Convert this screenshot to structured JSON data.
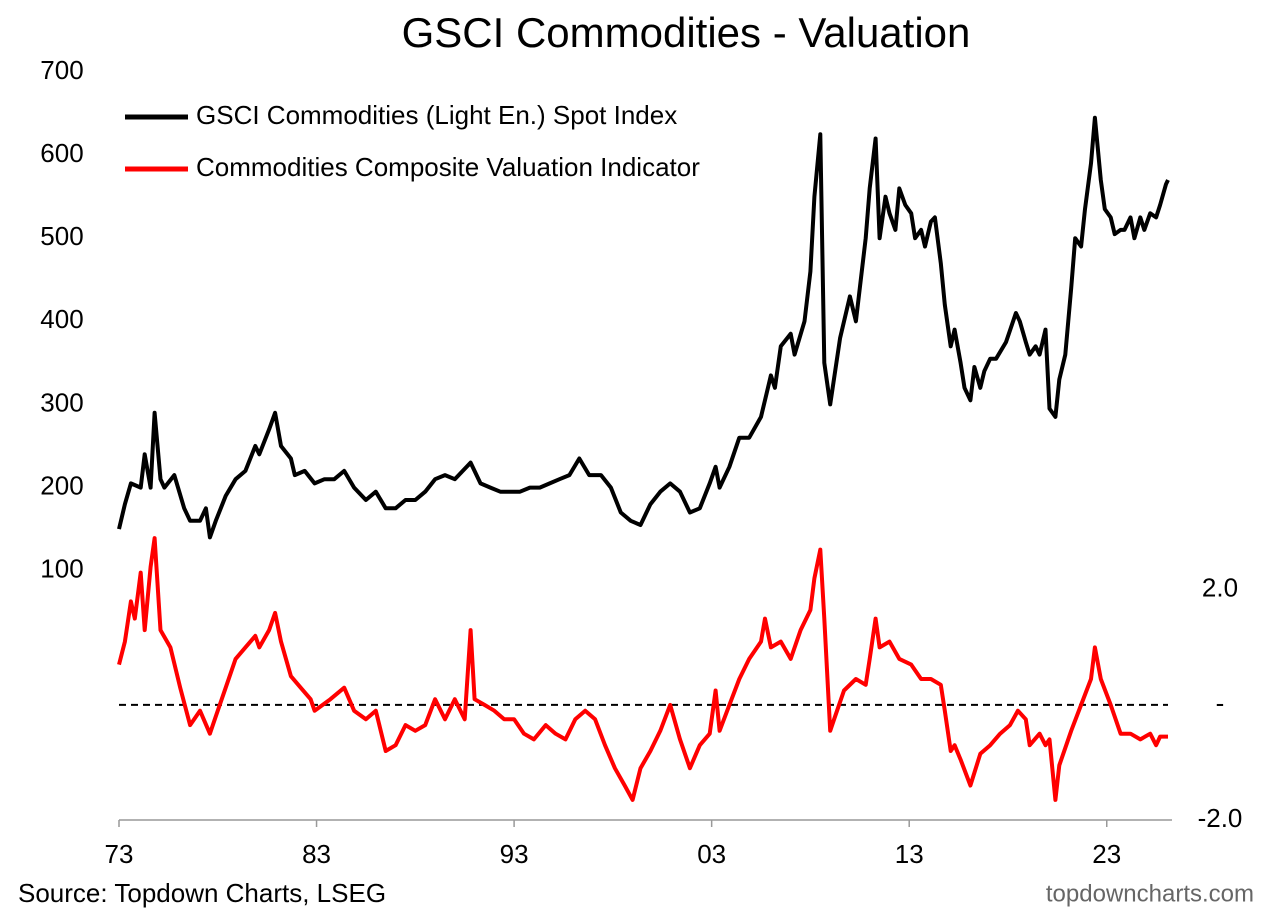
{
  "chart_data": {
    "type": "line",
    "title": "GSCI Commodities - Valuation",
    "source": "Source: Topdown Charts, LSEG",
    "watermark": "topdowncharts.com",
    "xlim": [
      1973,
      2026.1
    ],
    "xticks": [
      {
        "value": 1973,
        "label": "73"
      },
      {
        "value": 1983,
        "label": "83"
      },
      {
        "value": 1993,
        "label": "93"
      },
      {
        "value": 2003,
        "label": "03"
      },
      {
        "value": 2013,
        "label": "13"
      },
      {
        "value": 2023,
        "label": "23"
      }
    ],
    "ylim": [
      -200,
      700
    ],
    "yticks": [
      100,
      200,
      300,
      400,
      500,
      600,
      700
    ],
    "y2lim": [
      -2,
      11
    ],
    "y2ticks": [
      {
        "value": 2,
        "label": "2.0"
      },
      {
        "value": 0,
        "label": "-"
      },
      {
        "value": -2,
        "label": "-2.0"
      }
    ],
    "legend": "upper-left",
    "series": [
      {
        "name": "GSCI Commodities (Light En.) Spot Index",
        "color": "#000000",
        "axis": "y",
        "x": [
          1973.0,
          1973.3,
          1973.6,
          1974.1,
          1974.3,
          1974.6,
          1974.8,
          1975.1,
          1975.3,
          1975.8,
          1976.3,
          1976.6,
          1977.1,
          1977.4,
          1977.6,
          1977.9,
          1978.4,
          1978.9,
          1979.4,
          1979.9,
          1980.1,
          1980.6,
          1980.9,
          1981.2,
          1981.7,
          1981.9,
          1982.4,
          1982.9,
          1983.4,
          1983.9,
          1984.4,
          1984.9,
          1985.5,
          1986.0,
          1986.5,
          1987.0,
          1987.5,
          1988.0,
          1988.5,
          1989.0,
          1989.5,
          1990.0,
          1990.8,
          1991.3,
          1991.8,
          1992.3,
          1992.8,
          1993.3,
          1993.8,
          1994.3,
          1994.8,
          1995.3,
          1995.8,
          1996.3,
          1996.8,
          1997.4,
          1997.9,
          1998.4,
          1998.9,
          1999.4,
          1999.9,
          2000.4,
          2000.9,
          2001.4,
          2001.9,
          2002.4,
          2002.9,
          2003.2,
          2003.4,
          2003.9,
          2004.4,
          2004.9,
          2005.5,
          2006.0,
          2006.2,
          2006.5,
          2007.0,
          2007.2,
          2007.7,
          2008.0,
          2008.2,
          2008.5,
          2008.7,
          2009.0,
          2009.5,
          2010.0,
          2010.3,
          2010.5,
          2010.8,
          2011.0,
          2011.3,
          2011.5,
          2011.8,
          2012.0,
          2012.3,
          2012.5,
          2012.8,
          2013.1,
          2013.3,
          2013.6,
          2013.8,
          2014.1,
          2014.3,
          2014.6,
          2014.8,
          2015.1,
          2015.3,
          2015.6,
          2015.8,
          2016.1,
          2016.3,
          2016.6,
          2016.8,
          2017.1,
          2017.4,
          2017.9,
          2018.4,
          2018.6,
          2018.9,
          2019.1,
          2019.4,
          2019.6,
          2019.9,
          2020.1,
          2020.4,
          2020.6,
          2020.9,
          2021.2,
          2021.4,
          2021.7,
          2021.9,
          2022.2,
          2022.4,
          2022.7,
          2022.9,
          2023.2,
          2023.4,
          2023.7,
          2023.9,
          2024.2,
          2024.4,
          2024.7,
          2024.9,
          2025.2,
          2025.5,
          2025.7,
          2026.0,
          2026.1
        ],
        "values": [
          150,
          180,
          205,
          200,
          240,
          200,
          290,
          210,
          200,
          215,
          175,
          160,
          160,
          175,
          140,
          160,
          190,
          210,
          220,
          250,
          240,
          270,
          290,
          250,
          235,
          215,
          220,
          205,
          210,
          210,
          220,
          200,
          185,
          195,
          175,
          175,
          185,
          185,
          195,
          210,
          215,
          210,
          230,
          205,
          200,
          195,
          195,
          195,
          200,
          200,
          205,
          210,
          215,
          235,
          215,
          215,
          200,
          170,
          160,
          155,
          180,
          195,
          205,
          195,
          170,
          175,
          205,
          225,
          200,
          225,
          260,
          260,
          285,
          335,
          320,
          370,
          385,
          360,
          400,
          460,
          550,
          625,
          350,
          300,
          380,
          430,
          400,
          440,
          500,
          560,
          620,
          500,
          550,
          530,
          510,
          560,
          540,
          530,
          500,
          510,
          490,
          520,
          525,
          470,
          420,
          370,
          390,
          350,
          320,
          305,
          345,
          320,
          340,
          355,
          355,
          375,
          410,
          400,
          375,
          360,
          370,
          360,
          390,
          295,
          285,
          330,
          360,
          440,
          500,
          490,
          535,
          590,
          645,
          570,
          535,
          525,
          505,
          510,
          510,
          525,
          500,
          525,
          510,
          530,
          525,
          540,
          565,
          570
        ]
      },
      {
        "name": "Commodities Composite Valuation Indicator",
        "color": "#ff0000",
        "axis": "y2",
        "x": [
          1973.0,
          1973.3,
          1973.6,
          1973.8,
          1974.1,
          1974.3,
          1974.6,
          1974.8,
          1975.1,
          1975.6,
          1976.1,
          1976.6,
          1977.1,
          1977.6,
          1977.9,
          1978.4,
          1978.9,
          1979.4,
          1979.9,
          1980.1,
          1980.6,
          1980.9,
          1981.2,
          1981.7,
          1982.2,
          1982.7,
          1982.9,
          1983.7,
          1984.4,
          1984.9,
          1985.5,
          1986.0,
          1986.5,
          1987.0,
          1987.5,
          1988.0,
          1988.5,
          1989.0,
          1989.5,
          1990.0,
          1990.5,
          1990.8,
          1991.0,
          1991.5,
          1992.0,
          1992.5,
          1993.0,
          1993.5,
          1994.0,
          1994.6,
          1995.1,
          1995.6,
          1996.1,
          1996.6,
          1997.1,
          1997.6,
          1998.1,
          1998.6,
          1999.0,
          1999.4,
          1999.9,
          2000.4,
          2000.9,
          2001.4,
          2001.9,
          2002.4,
          2002.9,
          2003.2,
          2003.4,
          2003.9,
          2004.4,
          2004.9,
          2005.5,
          2005.7,
          2006.0,
          2006.5,
          2007.0,
          2007.5,
          2008.0,
          2008.2,
          2008.5,
          2008.7,
          2009.0,
          2009.2,
          2009.7,
          2010.3,
          2010.8,
          2011.0,
          2011.3,
          2011.5,
          2012.0,
          2012.5,
          2013.1,
          2013.6,
          2014.1,
          2014.6,
          2014.8,
          2015.1,
          2015.3,
          2015.6,
          2016.1,
          2016.6,
          2017.1,
          2017.6,
          2018.1,
          2018.5,
          2018.9,
          2019.1,
          2019.6,
          2019.9,
          2020.1,
          2020.4,
          2020.6,
          2021.2,
          2021.7,
          2022.2,
          2022.4,
          2022.7,
          2023.2,
          2023.7,
          2024.2,
          2024.7,
          2025.2,
          2025.5,
          2025.7,
          2026.1
        ],
        "values": [
          0.7,
          1.1,
          1.8,
          1.5,
          2.3,
          1.3,
          2.4,
          2.9,
          1.3,
          1.0,
          0.3,
          -0.35,
          -0.1,
          -0.5,
          -0.2,
          0.3,
          0.8,
          1.0,
          1.2,
          1.0,
          1.3,
          1.6,
          1.1,
          0.5,
          0.3,
          0.1,
          -0.1,
          0.1,
          0.3,
          -0.1,
          -0.25,
          -0.1,
          -0.8,
          -0.7,
          -0.35,
          -0.45,
          -0.35,
          0.1,
          -0.25,
          0.1,
          -0.25,
          1.3,
          0.1,
          0,
          -0.1,
          -0.25,
          -0.25,
          -0.5,
          -0.6,
          -0.35,
          -0.5,
          -0.6,
          -0.25,
          -0.1,
          -0.25,
          -0.7,
          -1.1,
          -1.4,
          -1.65,
          -1.1,
          -0.8,
          -0.45,
          0,
          -0.6,
          -1.1,
          -0.7,
          -0.5,
          0.25,
          -0.45,
          0,
          0.45,
          0.8,
          1.1,
          1.5,
          1.0,
          1.1,
          0.8,
          1.3,
          1.65,
          2.2,
          2.7,
          1.5,
          -0.45,
          -0.25,
          0.25,
          0.45,
          0.35,
          0.8,
          1.5,
          1.0,
          1.1,
          0.8,
          0.7,
          0.45,
          0.45,
          0.35,
          -0.1,
          -0.8,
          -0.7,
          -0.95,
          -1.4,
          -0.85,
          -0.7,
          -0.5,
          -0.35,
          -0.1,
          -0.25,
          -0.7,
          -0.5,
          -0.7,
          -0.6,
          -1.65,
          -1.05,
          -0.45,
          0,
          0.45,
          1.0,
          0.45,
          0,
          -0.5,
          -0.5,
          -0.6,
          -0.5,
          -0.7,
          -0.55,
          -0.55
        ]
      }
    ]
  }
}
